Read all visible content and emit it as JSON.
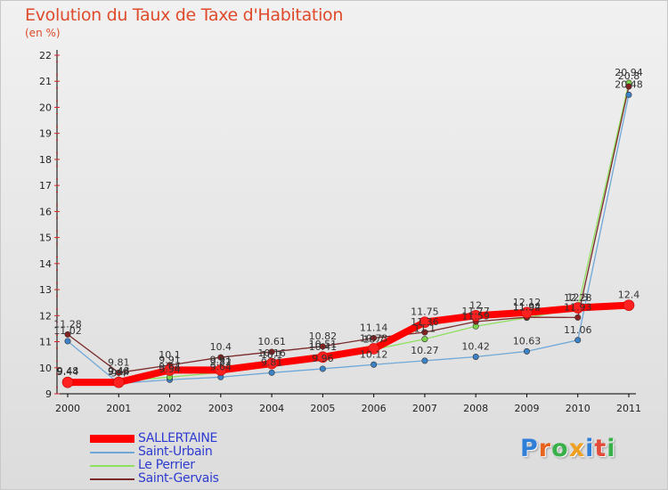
{
  "page": {
    "title": "Evolution du Taux de Taxe d'Habitation",
    "unit": "(en %)"
  },
  "logo": {
    "text": "Proxiti",
    "colors": [
      "#2f7fd8",
      "#e8641e",
      "#3ab04a",
      "#f0a020",
      "#2f7fd8",
      "#e34a3a",
      "#3ab04a"
    ]
  },
  "chart_data": {
    "type": "line",
    "title": "Evolution du Taux de Taxe d'Habitation",
    "ylabel": "(en %)",
    "xlabel": "",
    "ylim": [
      9,
      22
    ],
    "yticks": [
      9,
      10,
      11,
      12,
      13,
      14,
      15,
      16,
      17,
      18,
      19,
      20,
      21,
      22
    ],
    "x": [
      2000,
      2001,
      2002,
      2003,
      2004,
      2005,
      2006,
      2007,
      2008,
      2009,
      2010,
      2011
    ],
    "legend_position": "bottom-left",
    "series": [
      {
        "name": "SALLERTAINE",
        "color": "#ff0000",
        "point_color": "#ff2020",
        "values": [
          9.44,
          9.44,
          9.91,
          9.91,
          10.16,
          10.41,
          10.73,
          11.75,
          12.0,
          12.12,
          12.3,
          12.4
        ],
        "labels": [
          "9.44",
          "9.44",
          "9.91",
          "9.91",
          "10.16",
          "10.41",
          "10.73",
          "11.75",
          "12",
          "12.12",
          "12.3",
          "12.4"
        ]
      },
      {
        "name": "Saint-Urbain",
        "color": "#6fa8d8",
        "point_color": "#3d82c7",
        "values": [
          11.02,
          9.4,
          9.54,
          9.64,
          9.81,
          9.96,
          10.12,
          10.27,
          10.42,
          10.63,
          11.06,
          20.48
        ],
        "labels": [
          "11.02",
          "9.4",
          "9.54",
          "9.64",
          "9.81",
          "9.96",
          "10.12",
          "10.27",
          "10.42",
          "10.63",
          "11.06",
          "20.48"
        ]
      },
      {
        "name": "Le Perrier",
        "color": "#90e060",
        "point_color": "#7dd34a",
        "values": [
          9.48,
          9.48,
          9.64,
          9.82,
          10.1,
          10.51,
          10.7,
          11.1,
          11.59,
          11.92,
          12.28,
          20.94
        ],
        "labels": [
          "9.48",
          "9.48",
          "9.64",
          "9.82",
          "10.1",
          "10.51",
          "10.7",
          "11.1",
          "11.59",
          "11.92",
          "12.28",
          "20.94"
        ]
      },
      {
        "name": "Saint-Gervais",
        "color": "#7a2a2a",
        "point_color": "#8b2020",
        "values": [
          11.28,
          9.81,
          10.1,
          10.4,
          10.61,
          10.82,
          11.14,
          11.36,
          11.77,
          11.94,
          11.93,
          20.8
        ],
        "labels": [
          "11.28",
          "9.81",
          "10.1",
          "10.4",
          "10.61",
          "10.82",
          "11.14",
          "11.36",
          "11.77",
          "11.94",
          "11.93",
          "20.8"
        ]
      }
    ]
  }
}
